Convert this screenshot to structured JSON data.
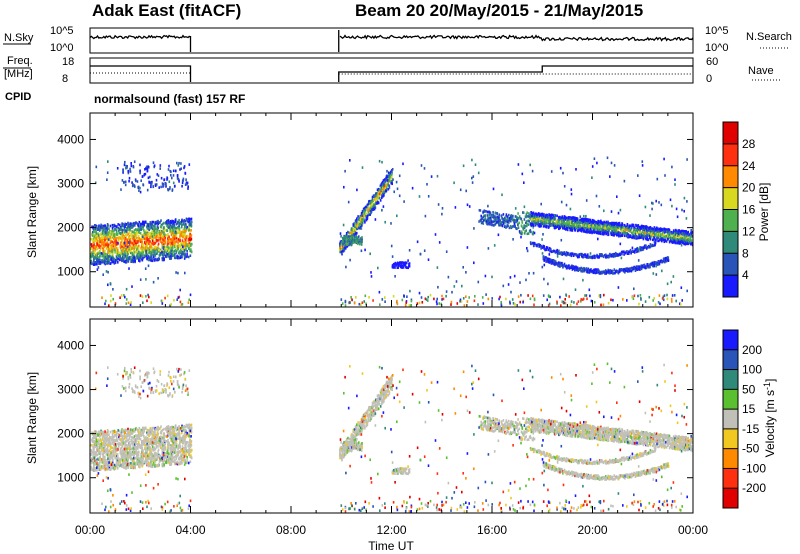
{
  "header": {
    "radar": "Adak East (fitACF)",
    "beam_and_dates": "Beam 20  20/May/2015 - 21/May/2015"
  },
  "params": {
    "nsky_label": "N.Sky",
    "nsky_ticks": [
      "10^5",
      "10^0"
    ],
    "nsearch_label": "N.Search",
    "nsearch_ticks": [
      "10^5",
      "10^0"
    ],
    "freq_label_line1": "Freq.",
    "freq_label_line2": "[MHz]",
    "freq_ticks": [
      "18",
      "8"
    ],
    "nave_label": "Nave",
    "nave_ticks": [
      "60",
      "0"
    ],
    "cpid_label": "CPID",
    "cpid_value": "normalsound (fast) 157 RF",
    "gap": {
      "start_hour": 4.0,
      "end_hour": 9.9
    },
    "freq_step_hour": 18.0
  },
  "chart_data": [
    {
      "type": "heatmap",
      "name": "power",
      "ylabel": "Slant Range [km]",
      "xlabel": "Time UT",
      "xlim_hours": [
        0,
        24
      ],
      "x_ticks": [
        "00:00",
        "04:00",
        "08:00",
        "12:00",
        "16:00",
        "20:00",
        "00:00"
      ],
      "ylim": [
        200,
        4600
      ],
      "y_ticks": [
        1000,
        2000,
        3000,
        4000
      ],
      "colorbar": {
        "label": "Power [dB]",
        "ticks": [
          4,
          8,
          12,
          16,
          20,
          24,
          28
        ],
        "colors": [
          "#1a1aff",
          "#2a55b8",
          "#2f8a7a",
          "#4fb050",
          "#d8d820",
          "#ff8a00",
          "#ff3010",
          "#e00000"
        ]
      },
      "features": [
        {
          "t0": 0.0,
          "t1": 4.0,
          "r0": 1100,
          "r1": 2050,
          "desc": "main band"
        },
        {
          "t0": 1.0,
          "t1": 3.9,
          "r0": 2800,
          "r1": 3550,
          "desc": "upper patches"
        },
        {
          "t0": 9.9,
          "t1": 12.0,
          "r0": 1400,
          "r1": 3300,
          "desc": "rising band"
        },
        {
          "t0": 15.5,
          "t1": 24.0,
          "r0": 1700,
          "r1": 2350,
          "desc": "late band"
        },
        {
          "t0": 18.0,
          "t1": 22.5,
          "r0": 800,
          "r1": 1200,
          "desc": "lower arc"
        }
      ]
    },
    {
      "type": "heatmap",
      "name": "velocity",
      "ylabel": "Slant Range [km]",
      "xlabel": "Time UT",
      "xlim_hours": [
        0,
        24
      ],
      "x_ticks": [
        "00:00",
        "04:00",
        "08:00",
        "12:00",
        "16:00",
        "20:00",
        "00:00"
      ],
      "ylim": [
        200,
        4600
      ],
      "y_ticks": [
        1000,
        2000,
        3000,
        4000
      ],
      "colorbar": {
        "label": "Velocity [m s^-1]",
        "ticks": [
          "200",
          "100",
          "50",
          "15",
          "-15",
          "-50",
          "-100",
          "-200"
        ],
        "colors": [
          "#1a1aff",
          "#2a55b8",
          "#2f8a7a",
          "#5ac030",
          "#c0c0b8",
          "#f0c820",
          "#ff8a00",
          "#ff3010",
          "#e00000"
        ]
      }
    }
  ]
}
